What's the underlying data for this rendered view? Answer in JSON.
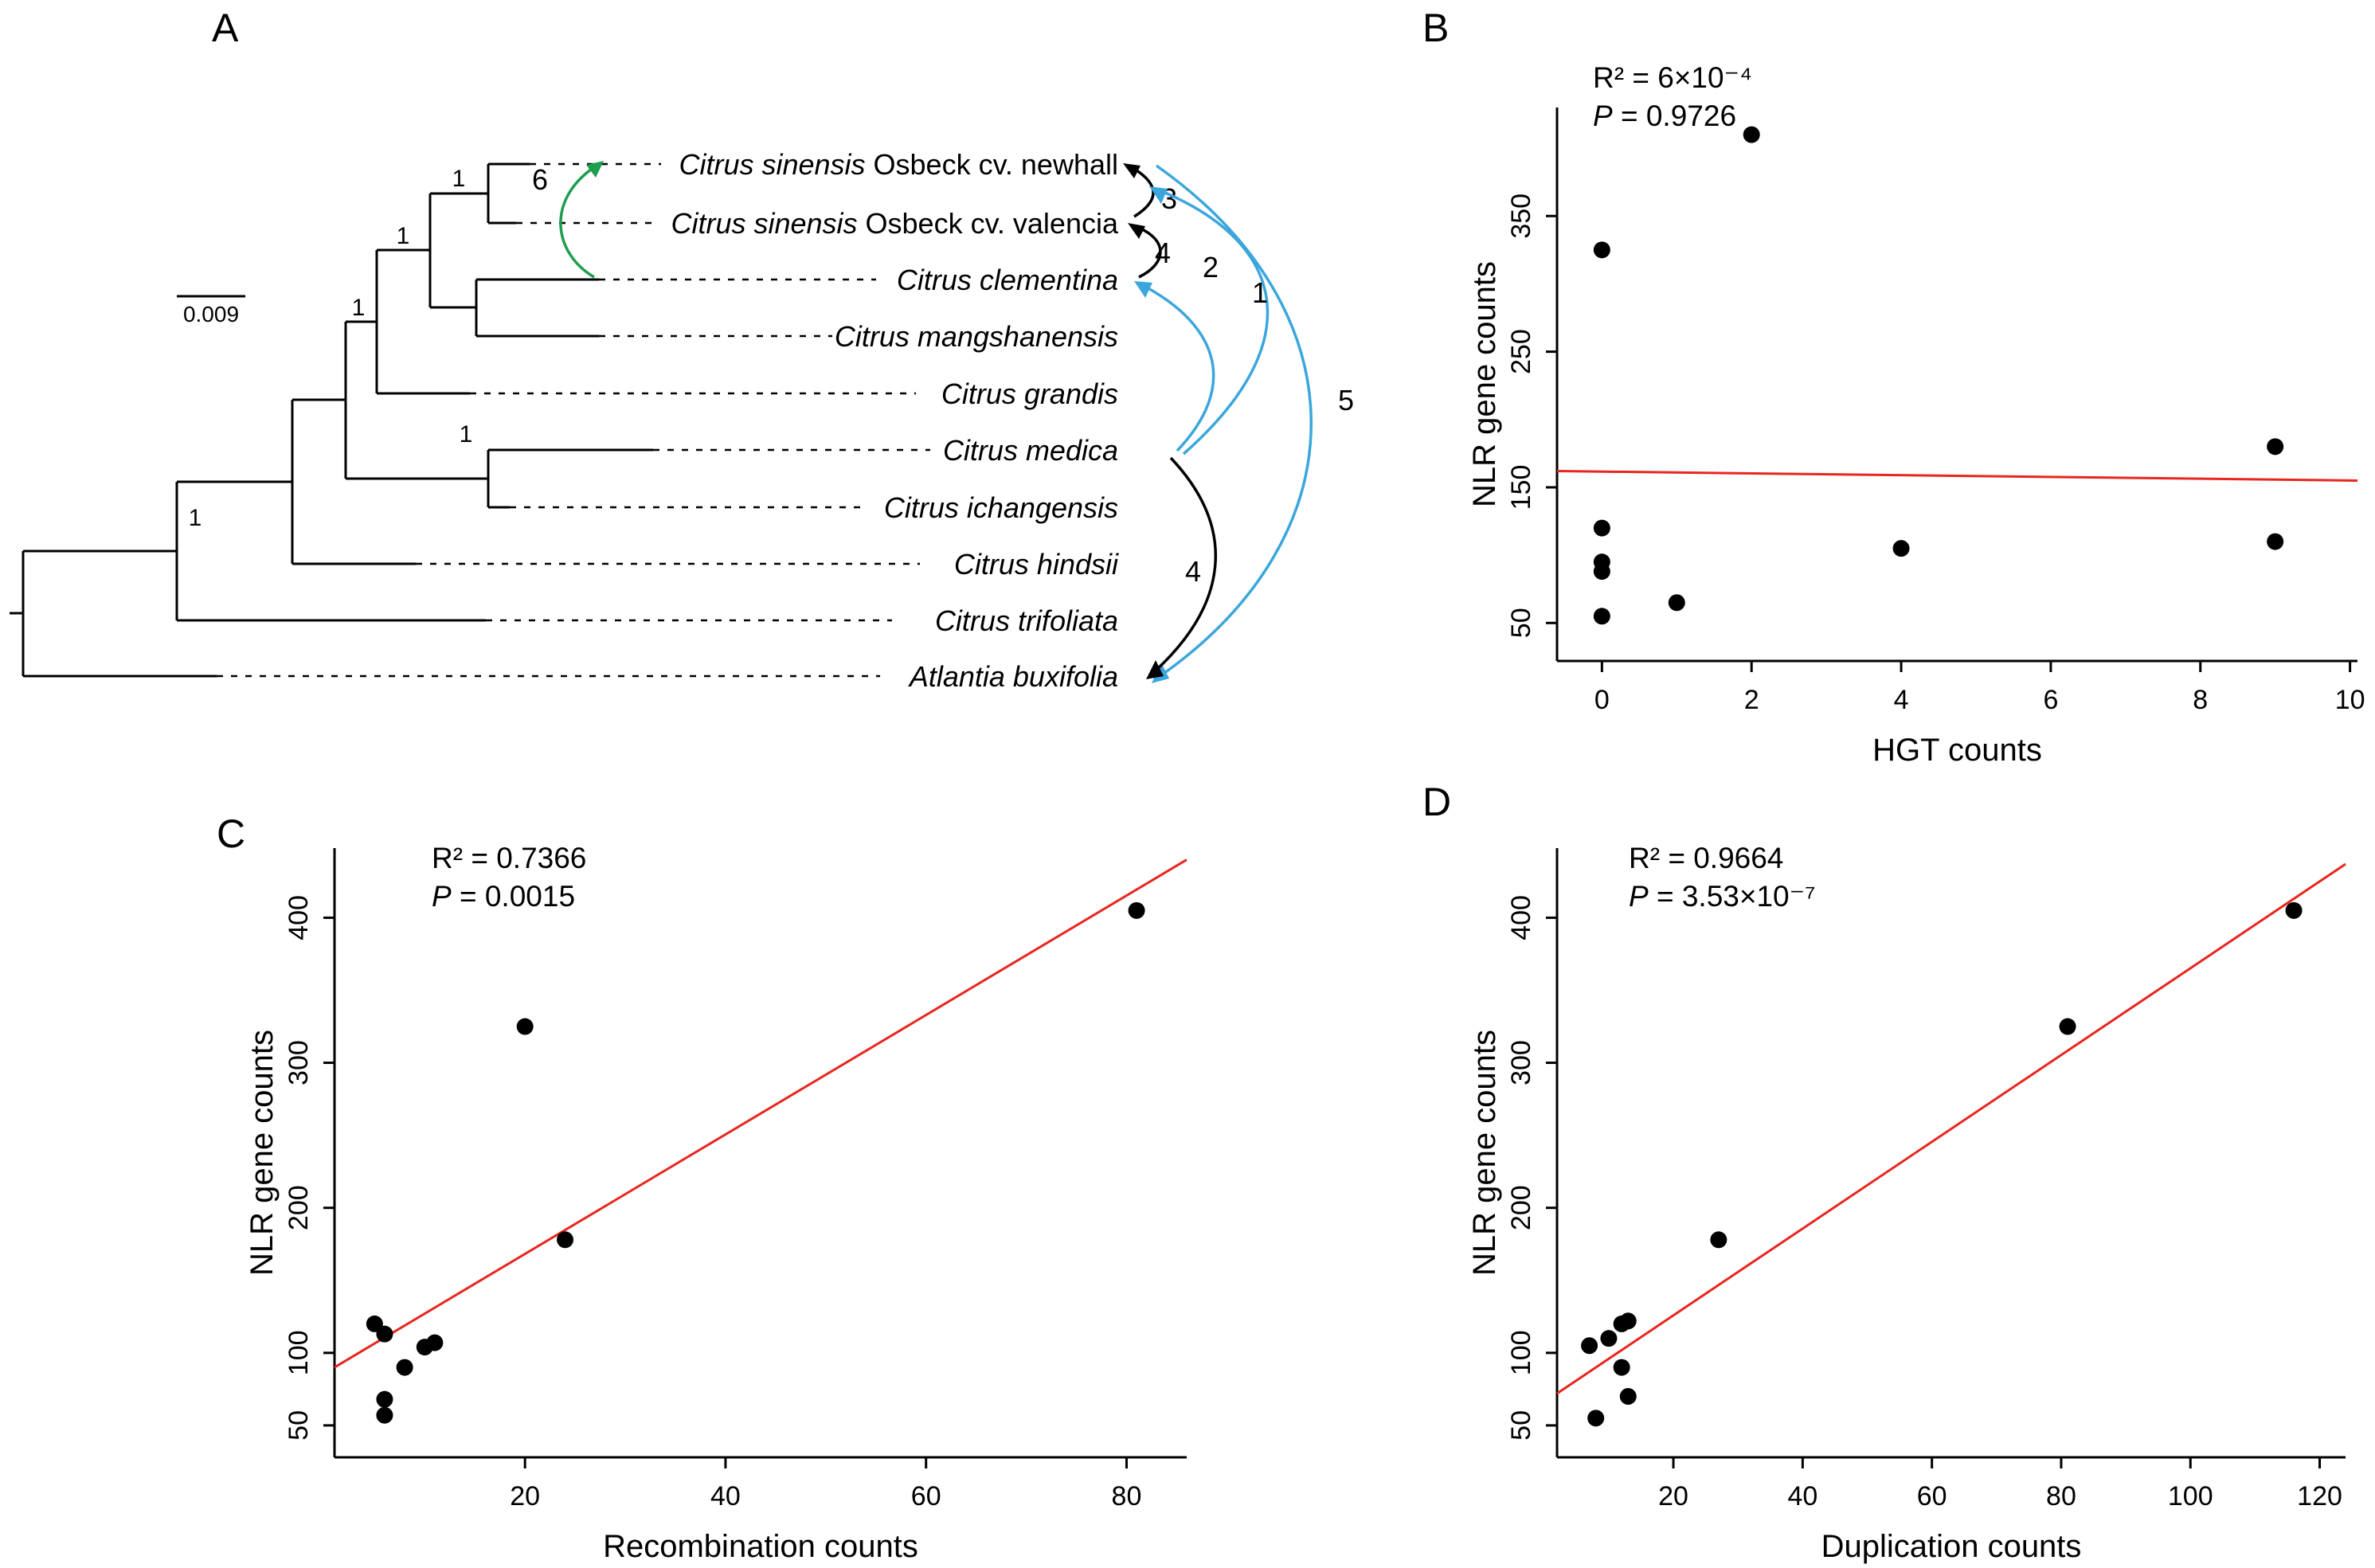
{
  "figure": {
    "panels": {
      "a": "A",
      "b": "B",
      "c": "C",
      "d": "D"
    }
  },
  "panelA": {
    "species": [
      {
        "italic": "Citrus sinensis",
        "regular": " Osbeck cv. newhall"
      },
      {
        "italic": "Citrus sinensis",
        "regular": " Osbeck cv. valencia"
      },
      {
        "italic": "Citrus clementina",
        "regular": ""
      },
      {
        "italic": "Citrus mangshanensis",
        "regular": ""
      },
      {
        "italic": "Citrus grandis",
        "regular": ""
      },
      {
        "italic": "Citrus medica",
        "regular": ""
      },
      {
        "italic": "Citrus ichangensis",
        "regular": ""
      },
      {
        "italic": "Citrus hindsii",
        "regular": ""
      },
      {
        "italic": "Citrus trifoliata",
        "regular": ""
      },
      {
        "italic": "Atlantia buxifolia",
        "regular": ""
      }
    ],
    "scale_label": "0.009",
    "node_supports": [
      "1",
      "1",
      "1",
      "1",
      "1"
    ],
    "arrows": [
      {
        "label": "6",
        "color": "#1f9e4f"
      },
      {
        "label": "3",
        "color": "#000000"
      },
      {
        "label": "4",
        "color": "#000000"
      },
      {
        "label": "2",
        "color": "#3ba6dd"
      },
      {
        "label": "1",
        "color": "#3ba6dd"
      },
      {
        "label": "5",
        "color": "#3ba6dd"
      },
      {
        "label": "4",
        "color": "#000000"
      }
    ],
    "colors": {
      "tree": "#000000",
      "hgt_blue": "#3ba6dd",
      "hgt_green": "#1f9e4f",
      "hgt_black": "#000000"
    }
  },
  "chart_data": [
    {
      "id": "B",
      "type": "scatter",
      "xlabel": "HGT counts",
      "ylabel": "NLR gene counts",
      "r2": "R² = 6×10⁻⁴",
      "p_label": "P",
      "p_value": " = 0.9726",
      "xlim": [
        -0.6,
        10.1
      ],
      "ylim": [
        22,
        430
      ],
      "xticks": [
        0,
        2,
        4,
        6,
        8,
        10
      ],
      "yticks": [
        50,
        150,
        250,
        350
      ],
      "points": [
        [
          0,
          325
        ],
        [
          2,
          410
        ],
        [
          0,
          120
        ],
        [
          0,
          95
        ],
        [
          0,
          88
        ],
        [
          0,
          55
        ],
        [
          1,
          65
        ],
        [
          4,
          105
        ],
        [
          9,
          180
        ],
        [
          9,
          110
        ]
      ],
      "line": {
        "x": [
          -0.6,
          10.1
        ],
        "y": [
          162,
          155
        ]
      },
      "grid": false,
      "point_color": "#000000",
      "line_color": "#e8261f"
    },
    {
      "id": "C",
      "type": "scatter",
      "xlabel": "Recombination counts",
      "ylabel": "NLR gene counts",
      "r2": "R² = 0.7366",
      "p_label": "P",
      "p_value": " = 0.0015",
      "xlim": [
        1,
        86
      ],
      "ylim": [
        28,
        448
      ],
      "xticks": [
        20,
        40,
        60,
        80
      ],
      "yticks": [
        50,
        100,
        200,
        300,
        400
      ],
      "points": [
        [
          5,
          120
        ],
        [
          6,
          113
        ],
        [
          8,
          90
        ],
        [
          10,
          104
        ],
        [
          11,
          107
        ],
        [
          6,
          68
        ],
        [
          6,
          57
        ],
        [
          24,
          178
        ],
        [
          20,
          325
        ],
        [
          81,
          405
        ]
      ],
      "line": {
        "x": [
          1,
          86
        ],
        "y": [
          90,
          440
        ]
      },
      "grid": false,
      "point_color": "#000000",
      "line_color": "#e8261f"
    },
    {
      "id": "D",
      "type": "scatter",
      "xlabel": "Duplication counts",
      "ylabel": "NLR gene counts",
      "r2": "R² = 0.9664",
      "p_label": "P",
      "p_value": " = 3.53×10⁻⁷",
      "xlim": [
        2,
        124
      ],
      "ylim": [
        28,
        448
      ],
      "xticks": [
        20,
        40,
        60,
        80,
        100,
        120
      ],
      "yticks": [
        50,
        100,
        200,
        300,
        400
      ],
      "points": [
        [
          8,
          55
        ],
        [
          7,
          105
        ],
        [
          10,
          110
        ],
        [
          12,
          120
        ],
        [
          13,
          122
        ],
        [
          12,
          90
        ],
        [
          13,
          70
        ],
        [
          27,
          178
        ],
        [
          81,
          325
        ],
        [
          116,
          405
        ]
      ],
      "line": {
        "x": [
          2,
          124
        ],
        "y": [
          72,
          437
        ]
      },
      "grid": false,
      "point_color": "#000000",
      "line_color": "#e8261f"
    }
  ]
}
